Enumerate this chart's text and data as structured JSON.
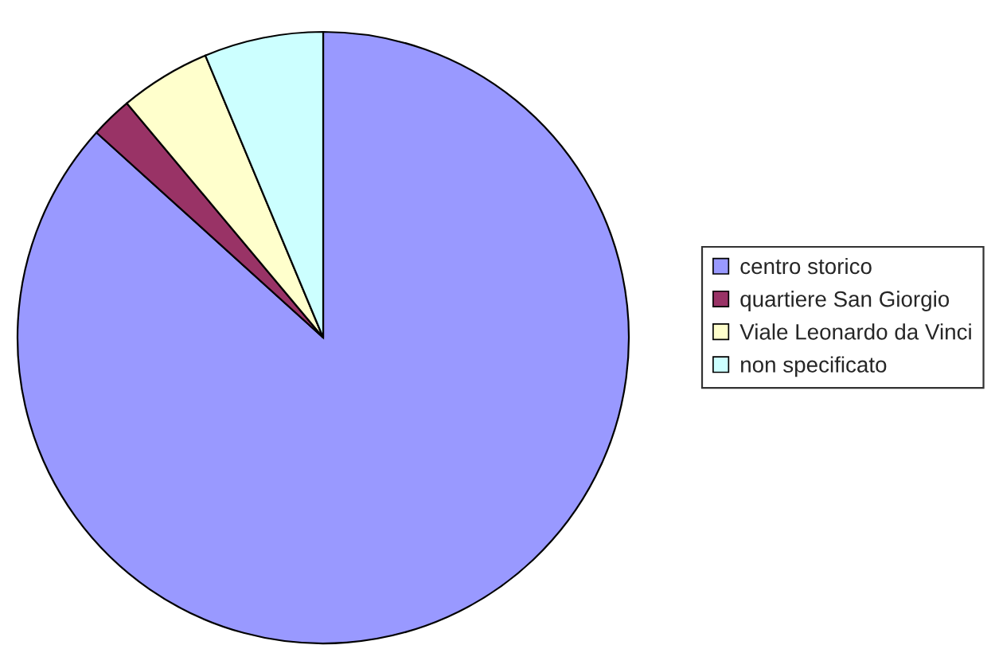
{
  "chart_data": {
    "type": "pie",
    "categories": [
      "centro storico",
      "quartiere San Giorgio",
      "Viale Leonardo da Vinci",
      "non specificato"
    ],
    "values": [
      86.7,
      2.2,
      4.8,
      6.3
    ],
    "colors": [
      "#9999ff",
      "#993366",
      "#ffffcc",
      "#ccffff"
    ],
    "legend": "right"
  }
}
